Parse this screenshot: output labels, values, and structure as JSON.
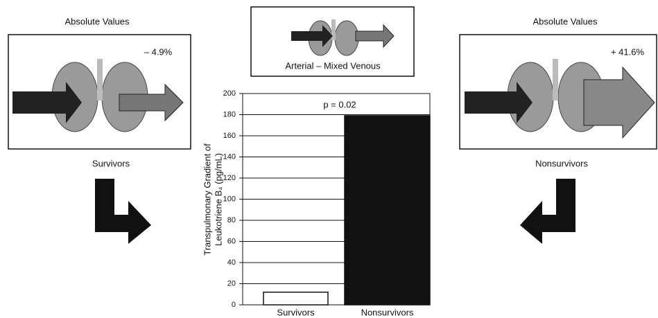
{
  "chart_data": {
    "type": "bar",
    "y_label": [
      "Transpulmonary Gradient of",
      "Leukotriene B₄ (pg/mL)"
    ],
    "annotation": "p = 0.02",
    "categories": [
      "Survivors",
      "Nonsurvivors"
    ],
    "values": [
      12,
      179
    ],
    "colors": [
      "#ffffff",
      "#111111"
    ],
    "ylim": [
      0,
      200
    ],
    "yticks": [
      0,
      20,
      40,
      60,
      80,
      100,
      120,
      140,
      160,
      180,
      200
    ],
    "grid": true
  },
  "top_panel": {
    "label": "Arterial – Mixed Venous"
  },
  "left_panel": {
    "title": "Absolute Values",
    "change": "– 4.9%",
    "label": "Survivors"
  },
  "right_panel": {
    "title": "Absolute Values",
    "change": "+ 41.6%",
    "label": "Nonsurvivors"
  }
}
